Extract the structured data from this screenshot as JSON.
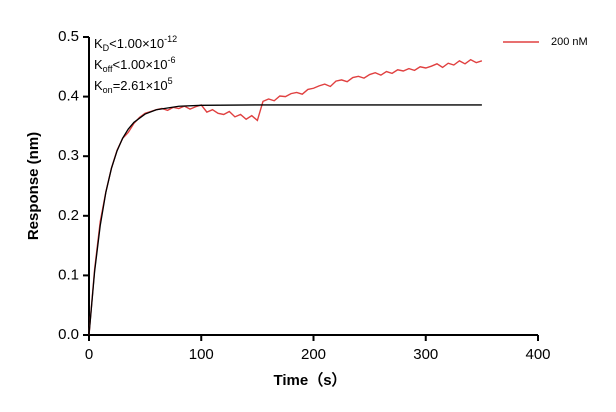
{
  "chart_data": {
    "type": "line",
    "xlabel": "Time（s）",
    "ylabel": "Response (nm)",
    "xlim": [
      0,
      400
    ],
    "xticks": [
      0,
      100,
      200,
      300,
      400
    ],
    "ylim": [
      0,
      0.5
    ],
    "yticks": [
      {
        "value": 0,
        "label": "0.0"
      },
      0.1,
      0.2,
      0.3,
      0.4,
      0.5
    ],
    "legend": "top-right",
    "annotations": [
      {
        "main": "K",
        "sub": "D",
        "rest": "<1.00×10",
        "sup": "-12"
      },
      {
        "main": "K",
        "sub": "off",
        "rest": "<1.00×10",
        "sup": "-6"
      },
      {
        "main": "K",
        "sub": "on",
        "rest": "=2.61×10",
        "sup": "5"
      }
    ],
    "series": [
      {
        "name": "200 nM",
        "color": "#e04040",
        "x": [
          0,
          5,
          10,
          15,
          20,
          25,
          30,
          35,
          40,
          45,
          50,
          55,
          60,
          65,
          70,
          75,
          80,
          85,
          90,
          95,
          100,
          105,
          110,
          115,
          120,
          125,
          130,
          135,
          140,
          145,
          150,
          155,
          160,
          165,
          170,
          175,
          180,
          185,
          190,
          195,
          200,
          205,
          210,
          215,
          220,
          225,
          230,
          235,
          240,
          245,
          250,
          255,
          260,
          265,
          270,
          275,
          280,
          285,
          290,
          295,
          300,
          305,
          310,
          315,
          320,
          325,
          330,
          335,
          340,
          345,
          350
        ],
        "values": [
          0.0,
          0.11,
          0.19,
          0.24,
          0.28,
          0.31,
          0.33,
          0.34,
          0.355,
          0.365,
          0.372,
          0.375,
          0.378,
          0.38,
          0.377,
          0.382,
          0.38,
          0.384,
          0.379,
          0.383,
          0.386,
          0.374,
          0.378,
          0.372,
          0.37,
          0.375,
          0.366,
          0.37,
          0.362,
          0.368,
          0.36,
          0.392,
          0.396,
          0.393,
          0.401,
          0.4,
          0.405,
          0.407,
          0.404,
          0.412,
          0.414,
          0.418,
          0.421,
          0.417,
          0.426,
          0.428,
          0.425,
          0.432,
          0.434,
          0.431,
          0.437,
          0.44,
          0.436,
          0.442,
          0.439,
          0.445,
          0.443,
          0.447,
          0.444,
          0.45,
          0.448,
          0.451,
          0.455,
          0.449,
          0.456,
          0.453,
          0.46,
          0.455,
          0.462,
          0.457,
          0.46
        ]
      },
      {
        "color": "#000000",
        "x": [
          0,
          5,
          10,
          15,
          20,
          25,
          30,
          35,
          40,
          50,
          60,
          80,
          100,
          150,
          200,
          250,
          300,
          350
        ],
        "values": [
          0,
          0.1064,
          0.1835,
          0.2393,
          0.2797,
          0.309,
          0.3303,
          0.3456,
          0.3567,
          0.3707,
          0.3779,
          0.3838,
          0.3854,
          0.386,
          0.386,
          0.386,
          0.386,
          0.386
        ]
      }
    ]
  }
}
